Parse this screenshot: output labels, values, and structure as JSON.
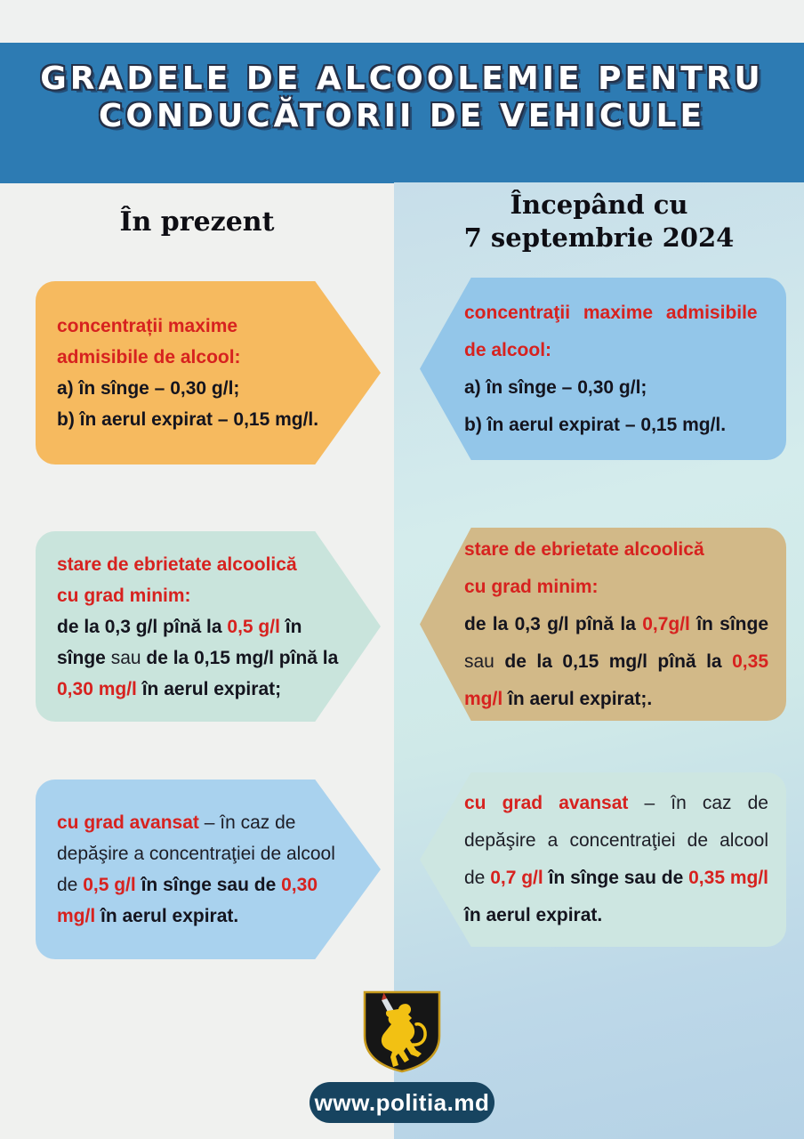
{
  "header": {
    "title_line1": "GRADELE DE ALCOOLEMIE PENTRU",
    "title_line2": "CONDUCĂTORII DE VEHICULE"
  },
  "columns": {
    "left_title": "În prezent",
    "right_title_line1": "Începând cu",
    "right_title_line2": "7 septembrie 2024"
  },
  "boxes": {
    "left_1": {
      "bg": "#f6ba5f",
      "paras": [
        [
          {
            "t": "concentrații maxime",
            "s": "h"
          }
        ],
        [
          {
            "t": "admisibile de alcool:",
            "s": "h"
          }
        ],
        [
          {
            "t": "a) în sînge – 0,30 g/l;",
            "s": "b",
            "nw": 1
          }
        ],
        [
          {
            "t": "b) în aerul expirat – 0,15 mg/l.",
            "s": "b",
            "nw": 1
          }
        ]
      ]
    },
    "right_1": {
      "bg": "#93c6e9",
      "paras": [
        [
          {
            "t": "concentraţii maxime admisibile",
            "s": "hw",
            "nw": 1
          }
        ],
        [
          {
            "t": "de alcool:",
            "s": "h"
          }
        ],
        [
          {
            "t": "a) în sînge – 0,30 g/l;",
            "s": "b",
            "nw": 1
          }
        ],
        [
          {
            "t": "b) în aerul expirat – 0,15 mg/l.",
            "s": "b",
            "nw": 1
          }
        ]
      ]
    },
    "left_2": {
      "bg": "#c9e4dc",
      "paras": [
        [
          {
            "t": "stare de ebrietate alcoolică",
            "s": "h",
            "nw": 1
          }
        ],
        [
          {
            "t": "cu grad minim:",
            "s": "h"
          }
        ],
        [
          {
            "t": "de la 0,3 g/l pînă la ",
            "s": "b"
          },
          {
            "t": "0,5 g/l",
            "s": "r"
          },
          {
            "t": " în sînge ",
            "s": "b"
          },
          {
            "t": "sau",
            "s": "n"
          },
          {
            "t": " de la 0,15 mg/l pînă la ",
            "s": "b"
          },
          {
            "t": "0,30 mg/l",
            "s": "r"
          },
          {
            "t": " în aerul expirat;",
            "s": "b"
          }
        ]
      ]
    },
    "right_2": {
      "bg": "#d2b988",
      "paras": [
        [
          {
            "t": "stare de ebrietate alcoolică",
            "s": "h",
            "nw": 1
          }
        ],
        [
          {
            "t": "cu grad minim:",
            "s": "h"
          }
        ],
        [
          {
            "t": "de la 0,3 g/l pînă la ",
            "s": "b"
          },
          {
            "t": "0,7g/l",
            "s": "r"
          },
          {
            "t": " în sînge ",
            "s": "b"
          },
          {
            "t": "sau",
            "s": "n"
          },
          {
            "t": " de la 0,15 mg/l pînă la ",
            "s": "b"
          },
          {
            "t": "0,35 mg/l",
            "s": "r"
          },
          {
            "t": " în aerul expirat;.",
            "s": "b"
          }
        ]
      ]
    },
    "left_3": {
      "bg": "#a9d2ee",
      "paras": [
        [
          {
            "t": "cu grad avansat",
            "s": "r"
          },
          {
            "t": " – în caz de depăşire a concentraţiei de alcool de ",
            "s": "n"
          },
          {
            "t": "0,5 g/l",
            "s": "r"
          },
          {
            "t": " în sînge sau de ",
            "s": "b"
          },
          {
            "t": "0,30 mg/l",
            "s": "r"
          },
          {
            "t": " în aerul expirat.",
            "s": "b"
          }
        ]
      ]
    },
    "right_3": {
      "bg": "#cde6e1",
      "paras": [
        [
          {
            "t": "cu grad avansat",
            "s": "r"
          },
          {
            "t": " – în caz de depăşire a concentraţiei de alcool de ",
            "s": "n"
          },
          {
            "t": "0,7 g/l",
            "s": "r"
          },
          {
            "t": " în sînge sau de ",
            "s": "b"
          },
          {
            "t": "0,35 mg/l",
            "s": "r"
          },
          {
            "t": " în aerul expirat.",
            "s": "b"
          }
        ]
      ]
    }
  },
  "footer": {
    "website": "www.politia.md"
  },
  "palette": {
    "header_bg": "#2d7bb3",
    "top_strip_bg": "#eff1f0",
    "page_left_bg": "#f0f1ef",
    "red_text": "#d7221f",
    "ink_text": "#14141e",
    "pill_bg": "#174460",
    "crest_gold": "#f2c113",
    "crest_black": "#161616",
    "sword_silver": "#dbe1e6"
  }
}
